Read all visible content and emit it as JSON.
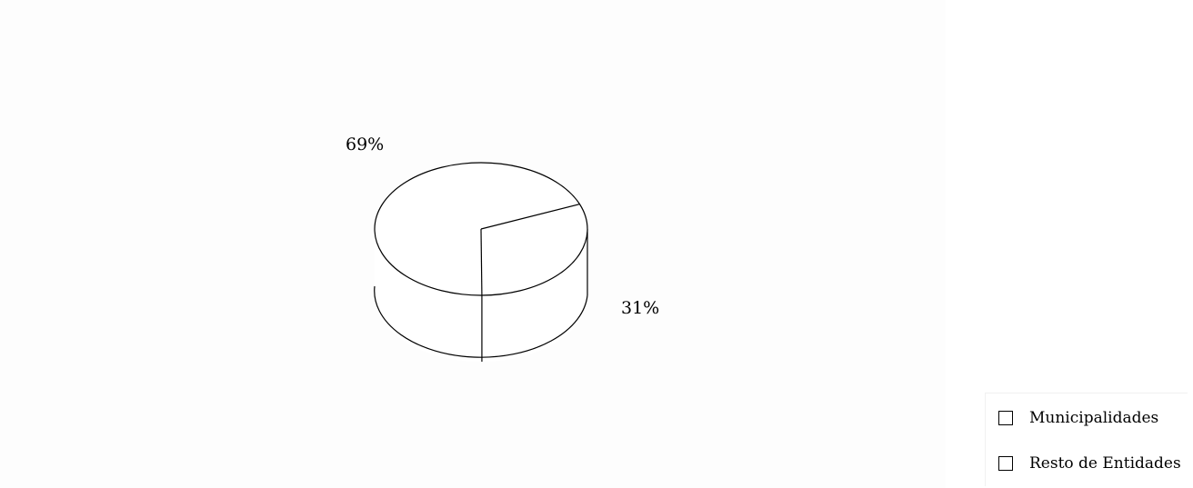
{
  "chart_data": {
    "type": "pie",
    "style": "3d",
    "categories": [
      "Resto de Entidades",
      "Municipalidades"
    ],
    "values": [
      31,
      69
    ],
    "data_labels": [
      "31%",
      "69%"
    ],
    "title": "",
    "legend": {
      "position": "bottom-right",
      "entries": [
        "Municipalidades",
        "Resto de Entidades"
      ]
    },
    "slice_fill": "#ffffff",
    "line_color": "#000000"
  }
}
